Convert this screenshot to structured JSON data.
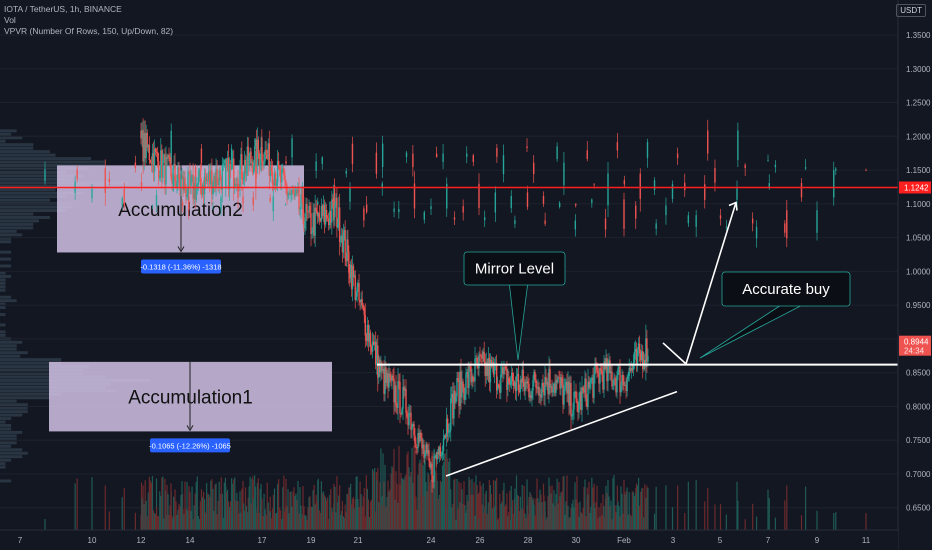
{
  "header": {
    "symbol_line": "IOTA / TetherUS, 1h, BINANCE",
    "vol_line": "Vol",
    "vpvr_line": "VPVR (Number Of Rows, 150, Up/Down, 82)",
    "currency_badge": "USDT"
  },
  "colors": {
    "background": "#131722",
    "up": "#26a69a",
    "down": "#ef5350",
    "vol_up": "#1f5a55",
    "vol_down": "#6b2a2c",
    "vpvr": "#3d4f5c",
    "zone": "#d8c7ec",
    "resistance": "#ff1f1f",
    "measure": "#2962ff"
  },
  "chart_data": {
    "type": "candlestick",
    "y_axis": {
      "ticks": [
        "1.3500",
        "1.3000",
        "1.2500",
        "1.2000",
        "1.1500",
        "1.1000",
        "1.0500",
        "1.0000",
        "0.9500",
        "0.9000",
        "0.8500",
        "0.8000",
        "0.7500",
        "0.7000",
        "0.6500"
      ],
      "range": [
        0.62,
        1.39
      ]
    },
    "x_axis": {
      "ticks": [
        "7",
        "10",
        "12",
        "14",
        "17",
        "19",
        "21",
        "24",
        "26",
        "28",
        "30",
        "Feb",
        "3",
        "5",
        "7",
        "9",
        "11"
      ]
    },
    "price_path": [
      [
        "7",
        1.19
      ],
      [
        "8",
        1.13
      ],
      [
        "9",
        1.07
      ],
      [
        "10",
        1.1
      ],
      [
        "11",
        1.13
      ],
      [
        "12",
        1.19
      ],
      [
        "13",
        1.15
      ],
      [
        "14",
        1.12
      ],
      [
        "15",
        1.14
      ],
      [
        "16",
        1.15
      ],
      [
        "17",
        1.18
      ],
      [
        "18",
        1.12
      ],
      [
        "19",
        1.07
      ],
      [
        "20",
        1.09
      ],
      [
        "21",
        0.96
      ],
      [
        "22",
        0.84
      ],
      [
        "23",
        0.8
      ],
      [
        "24",
        0.7
      ],
      [
        "25",
        0.82
      ],
      [
        "26",
        0.86
      ],
      [
        "27",
        0.84
      ],
      [
        "28",
        0.83
      ],
      [
        "29",
        0.84
      ],
      [
        "30",
        0.8
      ],
      [
        "31",
        0.85
      ],
      [
        "Feb",
        0.84
      ],
      [
        "2",
        0.89
      ]
    ],
    "horizontal_levels": [
      {
        "price": 1.1242,
        "label": "1.1242",
        "color": "#ff1f1f"
      },
      {
        "price": 0.862,
        "label": "",
        "color": "#ffffff"
      }
    ],
    "current_price": {
      "price": "0.8944",
      "countdown": "24:34"
    },
    "zones": [
      {
        "name": "Accumulation2",
        "from_date": "8",
        "to_date": "18",
        "top": 1.157,
        "bottom": 1.028,
        "measure": "-0.1318 (-11.36%) -1318"
      },
      {
        "name": "Accumulation1",
        "from_date": "8",
        "to_date": "20",
        "top": 0.866,
        "bottom": 0.763,
        "measure": "-0.1065 (-12.26%) -1065"
      }
    ],
    "trendline": {
      "from": [
        "24",
        0.697
      ],
      "to": [
        "2",
        0.822
      ]
    },
    "projection": [
      [
        "2",
        0.894
      ],
      [
        "3",
        0.863
      ],
      [
        "5",
        1.102
      ]
    ],
    "callouts": [
      {
        "text": "Mirror Level"
      },
      {
        "text": "Accurate buy"
      }
    ]
  }
}
